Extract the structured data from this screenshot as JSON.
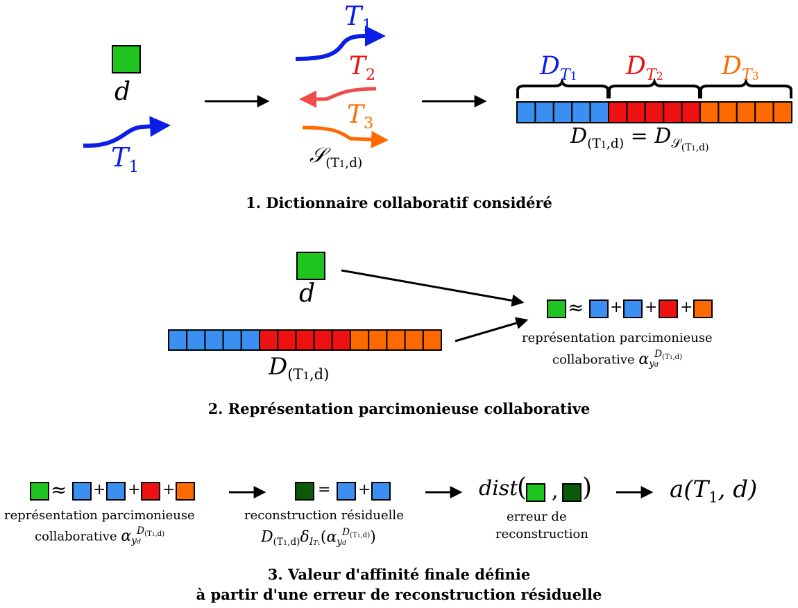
{
  "colors": {
    "green": "#1fc41f",
    "dark_green": "#0a5a0a",
    "blue": "#3a8ff0",
    "red": "#ee1111",
    "orange": "#ff6a00",
    "T1_arrow": "#0a1ee8",
    "T2_arrow": "#f04a4a",
    "T3_arrow": "#ff6a00"
  },
  "icons": [
    "arrow-icon",
    "square-icon"
  ],
  "section1": {
    "d": "d",
    "T1": "T",
    "T1_sub": "1",
    "T2": "T",
    "T2_sub": "2",
    "T3": "T",
    "T3_sub": "3",
    "S": "𝒮",
    "S_sub": "(T",
    "S_sub_idx": "1",
    "S_sub_end": ",d)",
    "D": "D",
    "eq_left_sub": "(T",
    "eq_left_sub_idx": "1",
    "eq_left_sub_end": ",d)",
    "eq": " = ",
    "eq_right_sub": "𝒮",
    "eq_right_sub2": "(T",
    "eq_right_sub2_idx": "1",
    "eq_right_sub2_end": ",d)",
    "caption": "1. Dictionnaire collaboratif considéré"
  },
  "section2": {
    "d": "d",
    "D": "D",
    "D_sub": "(T",
    "D_sub_idx": "1",
    "D_sub_end": ",d)",
    "approx": "≈",
    "plus": "+",
    "note_line1": "représentation parcimonieuse",
    "note_line2": "collaborative",
    "alpha": "α",
    "alpha_sub": "y",
    "alpha_subsub": "d",
    "alpha_sup": "D",
    "alpha_sup_sub": "(T",
    "alpha_sup_idx": "1",
    "alpha_sup_end": ",d)",
    "caption": "2. Représentation parcimonieuse collaborative"
  },
  "section3": {
    "approx": "≈",
    "plus": "+",
    "equals": "=",
    "note1_line1": "représentation parcimonieuse",
    "note1_line2": "collaborative",
    "note2_line1": "reconstruction résiduelle",
    "dist": "dist",
    "comma": ",",
    "note3_line1": "erreur de",
    "note3_line2": "reconstruction",
    "affinity": "a(T",
    "affinity_idx": "1",
    "affinity_end": ", d)",
    "caption_line1": "3. Valeur d'affinité finale définie",
    "caption_line2": "à partir d'une erreur de reconstruction résiduelle"
  }
}
